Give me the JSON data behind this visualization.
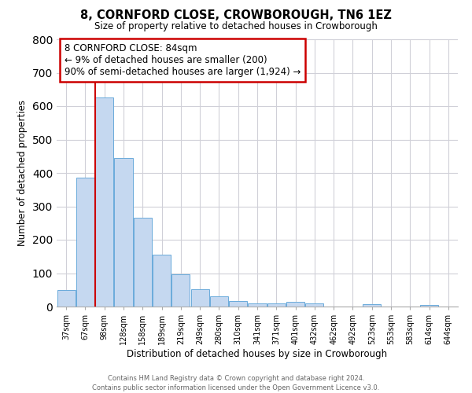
{
  "title": "8, CORNFORD CLOSE, CROWBOROUGH, TN6 1EZ",
  "subtitle": "Size of property relative to detached houses in Crowborough",
  "xlabel": "Distribution of detached houses by size in Crowborough",
  "ylabel": "Number of detached properties",
  "categories": [
    "37sqm",
    "67sqm",
    "98sqm",
    "128sqm",
    "158sqm",
    "189sqm",
    "219sqm",
    "249sqm",
    "280sqm",
    "310sqm",
    "341sqm",
    "371sqm",
    "401sqm",
    "432sqm",
    "462sqm",
    "492sqm",
    "523sqm",
    "553sqm",
    "583sqm",
    "614sqm",
    "644sqm"
  ],
  "values": [
    50,
    385,
    625,
    445,
    265,
    155,
    97,
    52,
    30,
    17,
    10,
    10,
    15,
    10,
    0,
    0,
    8,
    0,
    0,
    5,
    0
  ],
  "bar_color": "#c5d8f0",
  "bar_edge_color": "#6aabdb",
  "vline_color": "#cc0000",
  "ylim": [
    0,
    800
  ],
  "yticks": [
    0,
    100,
    200,
    300,
    400,
    500,
    600,
    700,
    800
  ],
  "annotation_box_text": "8 CORNFORD CLOSE: 84sqm\n← 9% of detached houses are smaller (200)\n90% of semi-detached houses are larger (1,924) →",
  "footer_line1": "Contains HM Land Registry data © Crown copyright and database right 2024.",
  "footer_line2": "Contains public sector information licensed under the Open Government Licence v3.0.",
  "background_color": "#ffffff",
  "grid_color": "#d0d0d8"
}
